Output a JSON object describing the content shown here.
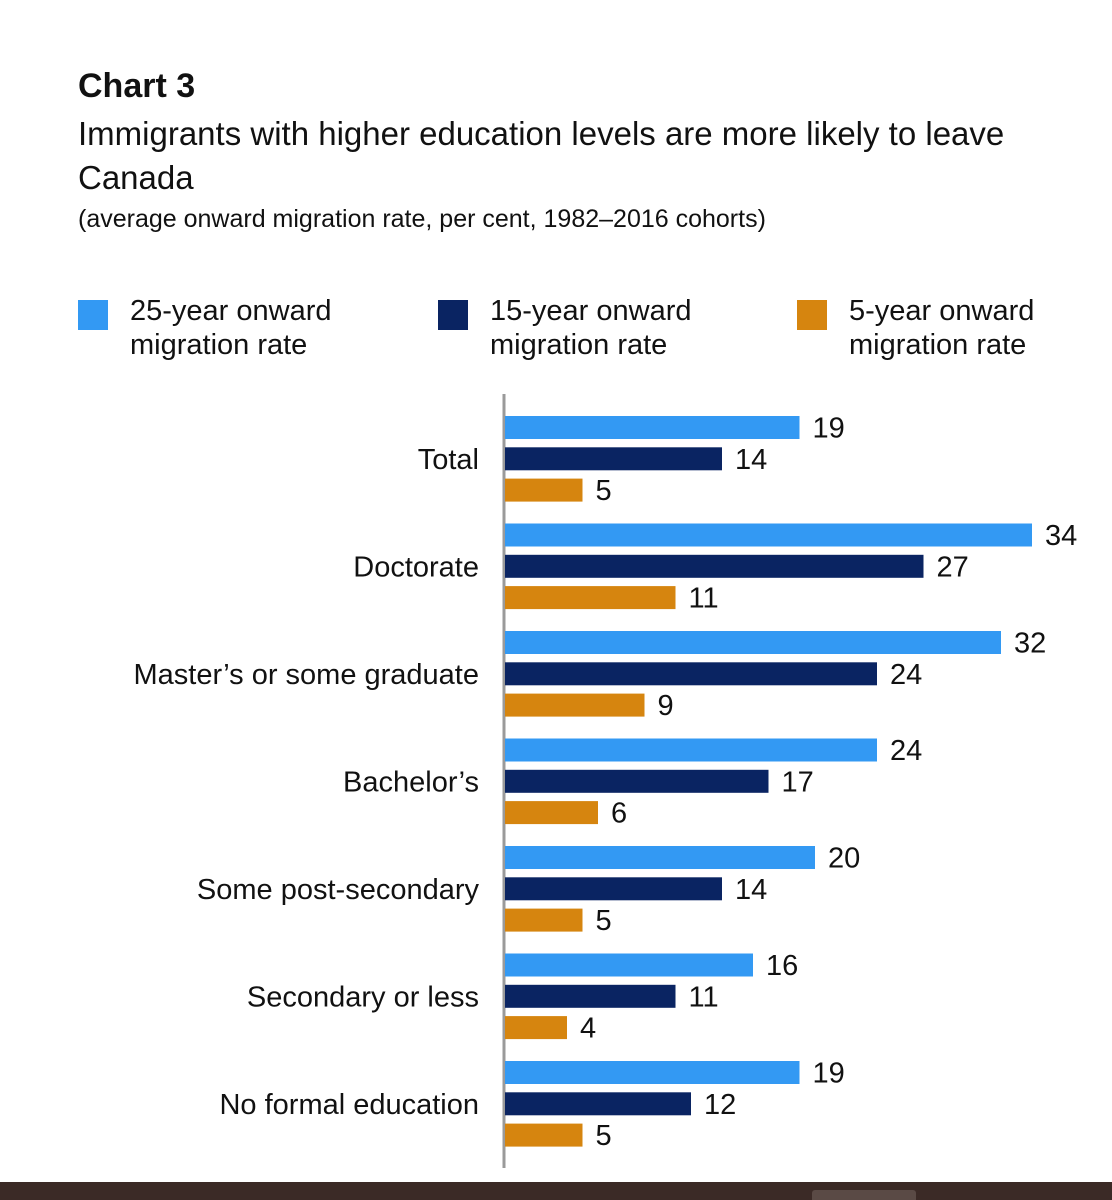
{
  "header": {
    "chart_label": "Chart 3",
    "title": "Immigrants with higher education levels are more likely to leave Canada",
    "subtitle": "(average onward migration rate, per cent, 1982–2016 cohorts)"
  },
  "colors": {
    "series_25": "#3399f3",
    "series_15": "#0a2462",
    "series_5": "#d6850f",
    "axis": "#9a9a9a",
    "text": "#111111"
  },
  "chart_data": {
    "type": "bar",
    "orientation": "horizontal",
    "title": "Immigrants with higher education levels are more likely to leave Canada",
    "subtitle": "(average onward migration rate, per cent, 1982–2016 cohorts)",
    "categories": [
      "Total",
      "Doctorate",
      "Master’s or some graduate",
      "Bachelor’s",
      "Some post-secondary",
      "Secondary or less",
      "No formal education"
    ],
    "series": [
      {
        "name": "25-year onward migration rate",
        "values": [
          19,
          34,
          32,
          24,
          20,
          16,
          19
        ]
      },
      {
        "name": "15-year onward migration rate",
        "values": [
          14,
          27,
          24,
          17,
          14,
          11,
          12
        ]
      },
      {
        "name": "5-year onward migration rate",
        "values": [
          5,
          11,
          9,
          6,
          5,
          4,
          5
        ]
      }
    ],
    "xlim": [
      0,
      34
    ],
    "grid": false,
    "legend_position": "top",
    "data_labels": true
  }
}
